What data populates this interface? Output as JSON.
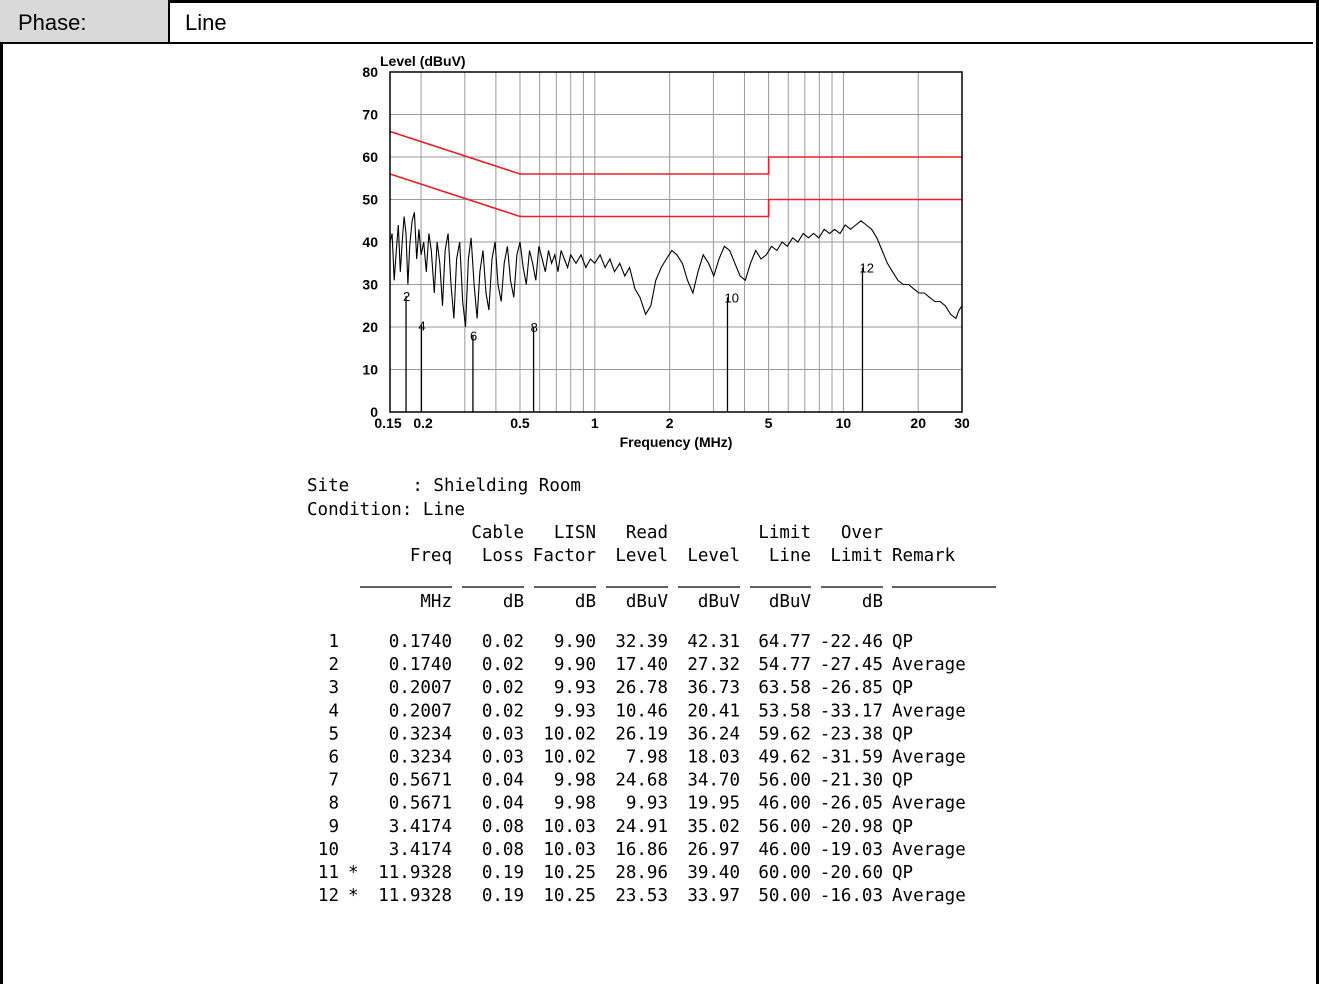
{
  "phase": {
    "label": "Phase:",
    "value": "Line"
  },
  "site_block": {
    "site_line": "Site      : Shielding Room",
    "condition_line": "Condition: Line"
  },
  "table": {
    "header_row1": [
      "",
      "Cable",
      "LISN",
      "Read",
      "",
      "Limit",
      "Over",
      ""
    ],
    "header_row2": [
      "Freq",
      "Loss",
      "Factor",
      "Level",
      "Level",
      "Line",
      "Limit",
      "Remark"
    ],
    "units": [
      "MHz",
      "dB",
      "dB",
      "dBuV",
      "dBuV",
      "dBuV",
      "dB",
      ""
    ],
    "rows": [
      {
        "no": "1",
        "mark": "",
        "freq": "0.1740",
        "cable": "0.02",
        "lisn": "9.90",
        "read": "32.39",
        "level": "42.31",
        "limit": "64.77",
        "over": "-22.46",
        "remark": "QP"
      },
      {
        "no": "2",
        "mark": "",
        "freq": "0.1740",
        "cable": "0.02",
        "lisn": "9.90",
        "read": "17.40",
        "level": "27.32",
        "limit": "54.77",
        "over": "-27.45",
        "remark": "Average"
      },
      {
        "no": "3",
        "mark": "",
        "freq": "0.2007",
        "cable": "0.02",
        "lisn": "9.93",
        "read": "26.78",
        "level": "36.73",
        "limit": "63.58",
        "over": "-26.85",
        "remark": "QP"
      },
      {
        "no": "4",
        "mark": "",
        "freq": "0.2007",
        "cable": "0.02",
        "lisn": "9.93",
        "read": "10.46",
        "level": "20.41",
        "limit": "53.58",
        "over": "-33.17",
        "remark": "Average"
      },
      {
        "no": "5",
        "mark": "",
        "freq": "0.3234",
        "cable": "0.03",
        "lisn": "10.02",
        "read": "26.19",
        "level": "36.24",
        "limit": "59.62",
        "over": "-23.38",
        "remark": "QP"
      },
      {
        "no": "6",
        "mark": "",
        "freq": "0.3234",
        "cable": "0.03",
        "lisn": "10.02",
        "read": "7.98",
        "level": "18.03",
        "limit": "49.62",
        "over": "-31.59",
        "remark": "Average"
      },
      {
        "no": "7",
        "mark": "",
        "freq": "0.5671",
        "cable": "0.04",
        "lisn": "9.98",
        "read": "24.68",
        "level": "34.70",
        "limit": "56.00",
        "over": "-21.30",
        "remark": "QP"
      },
      {
        "no": "8",
        "mark": "",
        "freq": "0.5671",
        "cable": "0.04",
        "lisn": "9.98",
        "read": "9.93",
        "level": "19.95",
        "limit": "46.00",
        "over": "-26.05",
        "remark": "Average"
      },
      {
        "no": "9",
        "mark": "",
        "freq": "3.4174",
        "cable": "0.08",
        "lisn": "10.03",
        "read": "24.91",
        "level": "35.02",
        "limit": "56.00",
        "over": "-20.98",
        "remark": "QP"
      },
      {
        "no": "10",
        "mark": "",
        "freq": "3.4174",
        "cable": "0.08",
        "lisn": "10.03",
        "read": "16.86",
        "level": "26.97",
        "limit": "46.00",
        "over": "-19.03",
        "remark": "Average"
      },
      {
        "no": "11",
        "mark": "*",
        "freq": "11.9328",
        "cable": "0.19",
        "lisn": "10.25",
        "read": "28.96",
        "level": "39.40",
        "limit": "60.00",
        "over": "-20.60",
        "remark": "QP"
      },
      {
        "no": "12",
        "mark": "*",
        "freq": "11.9328",
        "cable": "0.19",
        "lisn": "10.25",
        "read": "23.53",
        "level": "33.97",
        "limit": "50.00",
        "over": "-16.03",
        "remark": "Average"
      }
    ]
  },
  "chart_data": {
    "type": "line",
    "title": "",
    "xlabel": "Frequency (MHz)",
    "ylabel": "Level (dBuV)",
    "x_scale": "log",
    "xlim": [
      0.15,
      30
    ],
    "ylim": [
      0,
      80
    ],
    "x_ticks": [
      0.15,
      0.2,
      0.5,
      1,
      2,
      5,
      10,
      20,
      30
    ],
    "x_tick_labels": [
      "0.15",
      "0.2",
      "0.5",
      "1",
      "2",
      "5",
      "10",
      "20",
      "30"
    ],
    "y_ticks": [
      0,
      10,
      20,
      30,
      40,
      50,
      60,
      70,
      80
    ],
    "y_tick_labels": [
      "0",
      "10",
      "20",
      "30",
      "40",
      "50",
      "60",
      "70",
      "80"
    ],
    "grid": true,
    "limit_color": "#e8202a",
    "trace_color": "#000000",
    "series": [
      {
        "points": [
          [
            0.15,
            66
          ],
          [
            0.5,
            56
          ],
          [
            5,
            56
          ],
          [
            5,
            60
          ],
          [
            30,
            60
          ]
        ]
      },
      {
        "points": [
          [
            0.15,
            56
          ],
          [
            0.5,
            46
          ],
          [
            5,
            46
          ],
          [
            5,
            50
          ],
          [
            30,
            50
          ]
        ]
      },
      {
        "points": [
          [
            0.15,
            40
          ],
          [
            0.153,
            42
          ],
          [
            0.156,
            31
          ],
          [
            0.159,
            38
          ],
          [
            0.162,
            44
          ],
          [
            0.165,
            33
          ],
          [
            0.168,
            40
          ],
          [
            0.171,
            46
          ],
          [
            0.174,
            42
          ],
          [
            0.177,
            30
          ],
          [
            0.18,
            39
          ],
          [
            0.184,
            45
          ],
          [
            0.188,
            47
          ],
          [
            0.192,
            36
          ],
          [
            0.196,
            43
          ],
          [
            0.2,
            37
          ],
          [
            0.205,
            40
          ],
          [
            0.21,
            33
          ],
          [
            0.215,
            42
          ],
          [
            0.22,
            38
          ],
          [
            0.226,
            28
          ],
          [
            0.232,
            40
          ],
          [
            0.238,
            35
          ],
          [
            0.244,
            25
          ],
          [
            0.25,
            38
          ],
          [
            0.257,
            42
          ],
          [
            0.264,
            30
          ],
          [
            0.271,
            22
          ],
          [
            0.278,
            36
          ],
          [
            0.286,
            40
          ],
          [
            0.294,
            26
          ],
          [
            0.302,
            20
          ],
          [
            0.31,
            36
          ],
          [
            0.318,
            41
          ],
          [
            0.327,
            30
          ],
          [
            0.336,
            22
          ],
          [
            0.345,
            33
          ],
          [
            0.355,
            38
          ],
          [
            0.365,
            28
          ],
          [
            0.375,
            24
          ],
          [
            0.386,
            36
          ],
          [
            0.397,
            40
          ],
          [
            0.408,
            30
          ],
          [
            0.42,
            26
          ],
          [
            0.432,
            35
          ],
          [
            0.445,
            39
          ],
          [
            0.458,
            31
          ],
          [
            0.472,
            27
          ],
          [
            0.486,
            37
          ],
          [
            0.5,
            40
          ],
          [
            0.515,
            34
          ],
          [
            0.53,
            30
          ],
          [
            0.546,
            38
          ],
          [
            0.562,
            35
          ],
          [
            0.579,
            31
          ],
          [
            0.596,
            39
          ],
          [
            0.614,
            36
          ],
          [
            0.632,
            33
          ],
          [
            0.651,
            38
          ],
          [
            0.67,
            35
          ],
          [
            0.69,
            37
          ],
          [
            0.711,
            33
          ],
          [
            0.732,
            38
          ],
          [
            0.754,
            36
          ],
          [
            0.777,
            34
          ],
          [
            0.8,
            37
          ],
          [
            0.84,
            35
          ],
          [
            0.88,
            37
          ],
          [
            0.92,
            34
          ],
          [
            0.96,
            36
          ],
          [
            1.0,
            35
          ],
          [
            1.05,
            37
          ],
          [
            1.1,
            34
          ],
          [
            1.15,
            36
          ],
          [
            1.2,
            33
          ],
          [
            1.26,
            35
          ],
          [
            1.32,
            32
          ],
          [
            1.38,
            34
          ],
          [
            1.45,
            29
          ],
          [
            1.52,
            27
          ],
          [
            1.6,
            23
          ],
          [
            1.68,
            25
          ],
          [
            1.76,
            31
          ],
          [
            1.85,
            34
          ],
          [
            1.94,
            36
          ],
          [
            2.04,
            38
          ],
          [
            2.14,
            37
          ],
          [
            2.25,
            35
          ],
          [
            2.36,
            31
          ],
          [
            2.48,
            28
          ],
          [
            2.6,
            33
          ],
          [
            2.73,
            37
          ],
          [
            2.87,
            35
          ],
          [
            3.01,
            32
          ],
          [
            3.16,
            36
          ],
          [
            3.32,
            39
          ],
          [
            3.49,
            38
          ],
          [
            3.66,
            35
          ],
          [
            3.84,
            32
          ],
          [
            4.03,
            31
          ],
          [
            4.23,
            35
          ],
          [
            4.44,
            38
          ],
          [
            4.66,
            36
          ],
          [
            4.9,
            37
          ],
          [
            5.14,
            39
          ],
          [
            5.4,
            38
          ],
          [
            5.67,
            40
          ],
          [
            5.95,
            39
          ],
          [
            6.25,
            41
          ],
          [
            6.56,
            40
          ],
          [
            6.89,
            42
          ],
          [
            7.23,
            41
          ],
          [
            7.59,
            42
          ],
          [
            7.97,
            41
          ],
          [
            8.37,
            43
          ],
          [
            8.79,
            42
          ],
          [
            9.23,
            43
          ],
          [
            9.69,
            42
          ],
          [
            10.17,
            44
          ],
          [
            10.68,
            43
          ],
          [
            11.21,
            44
          ],
          [
            11.77,
            45
          ],
          [
            12.36,
            44
          ],
          [
            12.98,
            43
          ],
          [
            13.63,
            41
          ],
          [
            14.31,
            38
          ],
          [
            15.03,
            35
          ],
          [
            15.78,
            33
          ],
          [
            16.57,
            31
          ],
          [
            17.4,
            30
          ],
          [
            18.27,
            30
          ],
          [
            19.18,
            29
          ],
          [
            20.14,
            28
          ],
          [
            21.15,
            28
          ],
          [
            22.21,
            27
          ],
          [
            23.32,
            26
          ],
          [
            24.48,
            26
          ],
          [
            25.71,
            25
          ],
          [
            26.99,
            23
          ],
          [
            28.34,
            22
          ],
          [
            29.2,
            24
          ],
          [
            30.0,
            25
          ]
        ]
      }
    ],
    "markers": [
      {
        "label": "2",
        "freq": 0.174,
        "level": 27.32
      },
      {
        "label": "4",
        "freq": 0.2007,
        "level": 20.41
      },
      {
        "label": "6",
        "freq": 0.3234,
        "level": 18.03
      },
      {
        "label": "8",
        "freq": 0.5671,
        "level": 19.95
      },
      {
        "label": "10",
        "freq": 3.4174,
        "level": 26.97
      },
      {
        "label": "12",
        "freq": 11.9328,
        "level": 33.97
      }
    ]
  }
}
